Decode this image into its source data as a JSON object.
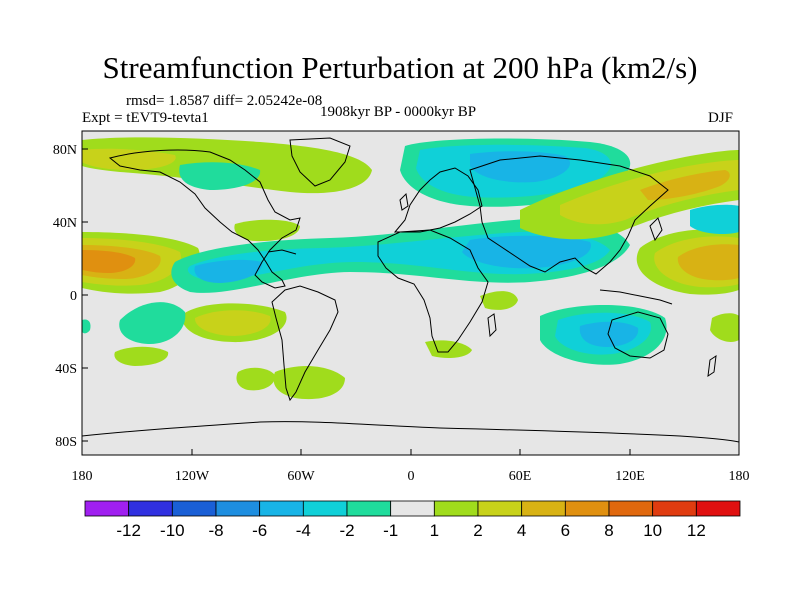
{
  "figure": {
    "title": "Streamfunction Perturbation at 200 hPa (km2/s)",
    "stats": "rmsd= 1.8587  diff= 2.05242e-08",
    "experiment": "Expt = tEVT9-tevta1",
    "period": "1908kyr BP - 0000kyr BP",
    "season": "DJF"
  },
  "chart_data": {
    "type": "heatmap",
    "variable": "Streamfunction perturbation at 200 hPa",
    "units": "km2/s",
    "x_ticks": [
      "180",
      "120W",
      "60W",
      "0",
      "60E",
      "120E",
      "180"
    ],
    "y_ticks": [
      "80N",
      "40N",
      "0",
      "40S",
      "80S"
    ],
    "colorbar": {
      "labels": [
        "-12",
        "-10",
        "-8",
        "-6",
        "-4",
        "-2",
        "-1",
        "1",
        "2",
        "4",
        "6",
        "8",
        "10",
        "12"
      ],
      "colors": [
        "#a020f0",
        "#3030e0",
        "#1a5fd6",
        "#1e8ee0",
        "#18b4e6",
        "#10d0d8",
        "#20dc9c",
        "#e6e6e6",
        "#a0dc1c",
        "#c8d21a",
        "#d8b214",
        "#e09010",
        "#e0680e",
        "#e03c10",
        "#e01010"
      ]
    },
    "features": [
      {
        "name": "positive anomaly",
        "lon": -160,
        "lat": 20,
        "level": "8"
      },
      {
        "name": "positive anomaly",
        "lon": 165,
        "lat": 20,
        "level": "6"
      },
      {
        "name": "negative anomaly",
        "lon": 60,
        "lat": 70,
        "level": "-4"
      },
      {
        "name": "negative anomaly",
        "lon": 45,
        "lat": 25,
        "level": "-4"
      },
      {
        "name": "negative anomaly",
        "lon": -90,
        "lat": 10,
        "level": "-4"
      },
      {
        "name": "negative anomaly",
        "lon": 60,
        "lat": -30,
        "level": "-4"
      },
      {
        "name": "positive anomaly",
        "lon": -100,
        "lat": -20,
        "level": "4"
      },
      {
        "name": "positive anomaly",
        "lon": 120,
        "lat": 45,
        "level": "4"
      }
    ]
  }
}
